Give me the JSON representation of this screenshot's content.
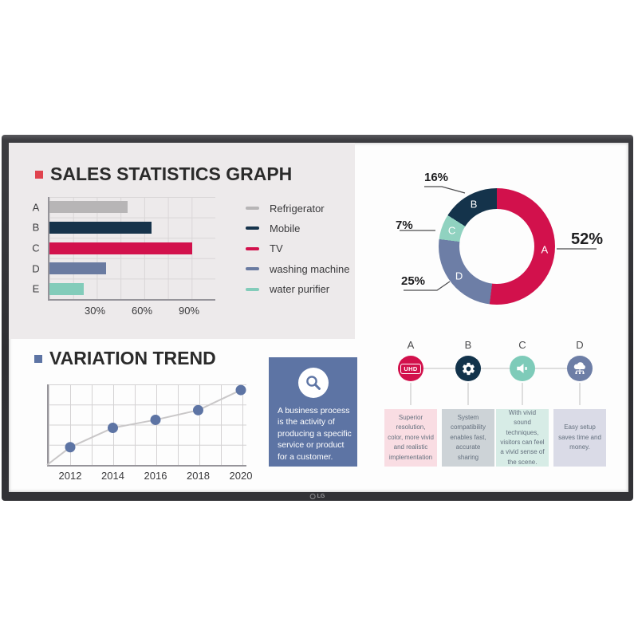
{
  "brand": {
    "logo_text": "LG"
  },
  "sections": {
    "sales": {
      "title": "SALES STATISTICS GRAPH",
      "bullet_color": "#e0434e",
      "panel_color": "#edeaeb"
    },
    "trend": {
      "title": "VARIATION TREND",
      "bullet_color": "#5d74a4"
    }
  },
  "callout_card": {
    "text": "A business process is the activity of producing a specific service or product for a customer.",
    "icon": "magnifier-icon",
    "bg_color": "#5d74a4"
  },
  "chart_data": [
    {
      "id": "sales_bars",
      "type": "bar",
      "orientation": "horizontal",
      "title": "SALES STATISTICS GRAPH",
      "categories": [
        "A",
        "B",
        "C",
        "D",
        "E"
      ],
      "values": [
        50,
        65,
        91,
        36,
        22
      ],
      "unit": "%",
      "xlim": [
        0,
        105
      ],
      "x_ticks": [
        "30%",
        "60%",
        "90%"
      ],
      "x_tick_values": [
        30,
        60,
        90
      ],
      "grid": true,
      "legend_position": "right",
      "legend": [
        {
          "label": "Refrigerator",
          "color": "#b7b5b6"
        },
        {
          "label": "Mobile",
          "color": "#16334b"
        },
        {
          "label": "TV",
          "color": "#d2114c"
        },
        {
          "label": "washing machine",
          "color": "#6a7ba1"
        },
        {
          "label": "water purifier",
          "color": "#83ccba"
        }
      ]
    },
    {
      "id": "share_donut",
      "type": "pie",
      "subtype": "donut",
      "order_clockwise_from_top": [
        "A",
        "D",
        "C",
        "B"
      ],
      "segments": [
        {
          "label": "A",
          "value": 52,
          "display": "52%",
          "color": "#d2114c"
        },
        {
          "label": "B",
          "value": 16,
          "display": "16%",
          "color": "#14334b"
        },
        {
          "label": "C",
          "value": 7,
          "display": "7%",
          "color": "#90d2c0"
        },
        {
          "label": "D",
          "value": 25,
          "display": "25%",
          "color": "#6d7ea6"
        }
      ]
    },
    {
      "id": "variation_trend",
      "type": "line",
      "title": "VARIATION TREND",
      "x": [
        "2012",
        "2014",
        "2016",
        "2018",
        "2020"
      ],
      "values": [
        1.1,
        2.3,
        2.8,
        3.4,
        4.65
      ],
      "ylim": [
        0,
        5
      ],
      "grid": true,
      "marker": "circle",
      "line_color": "#c9c7c8",
      "marker_color": "#5d74a4",
      "starts_at_origin": true
    }
  ],
  "process_steps": {
    "steps": [
      {
        "letter": "A",
        "icon": "uhd-badge-icon",
        "icon_text": "UHD",
        "circle_color": "#d2114c",
        "box_color": "#f9dde3",
        "text": "Superior resolution, color, more vivid and realistic implementation"
      },
      {
        "letter": "B",
        "icon": "gear-icon",
        "circle_color": "#12334b",
        "box_color": "#cdd3d7",
        "text": "System compatibility enables fast, accurate sharing"
      },
      {
        "letter": "C",
        "icon": "speaker-icon",
        "circle_color": "#7ecbb9",
        "box_color": "#d7ece6",
        "text": "With vivid sound techniques, visitors can feel a vivid sense of the scene."
      },
      {
        "letter": "D",
        "icon": "cloud-network-icon",
        "circle_color": "#6d7ea6",
        "box_color": "#dadbe7",
        "text": "Easy setup saves time and money."
      }
    ]
  }
}
